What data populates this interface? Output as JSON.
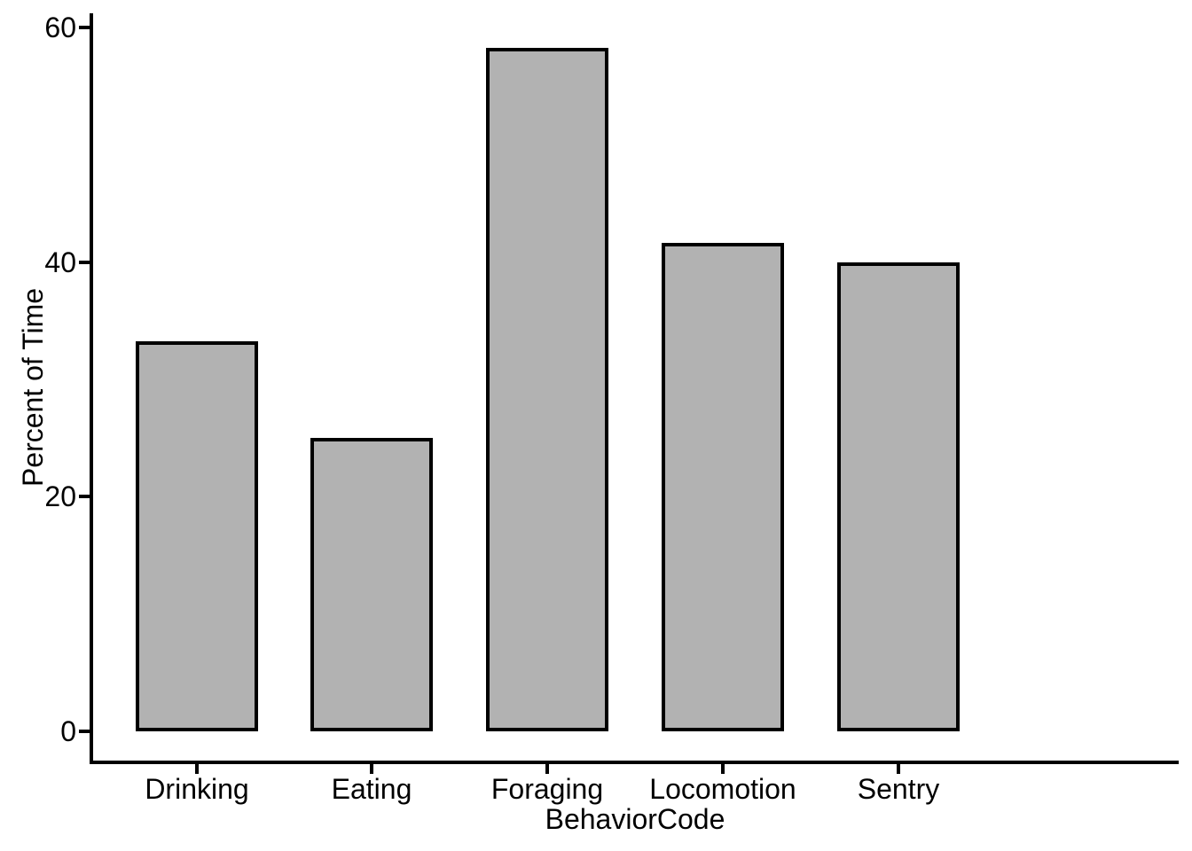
{
  "chart_data": {
    "type": "bar",
    "categories": [
      "Drinking",
      "Eating",
      "Foraging",
      "Locomotion",
      "Sentry"
    ],
    "values": [
      33.3,
      25,
      58.3,
      41.7,
      40
    ],
    "title": "",
    "xlabel": "BehaviorCode",
    "ylabel": "Percent of Time",
    "ylim": [
      0,
      61.2
    ],
    "yticks": [
      0,
      20,
      40,
      60
    ],
    "grid": false,
    "legend_position": "none",
    "bar_fill": "#b2b2b2",
    "bar_border": "#000000",
    "axis_color": "#000000",
    "text_color": "#000000",
    "background": "#ffffff"
  }
}
